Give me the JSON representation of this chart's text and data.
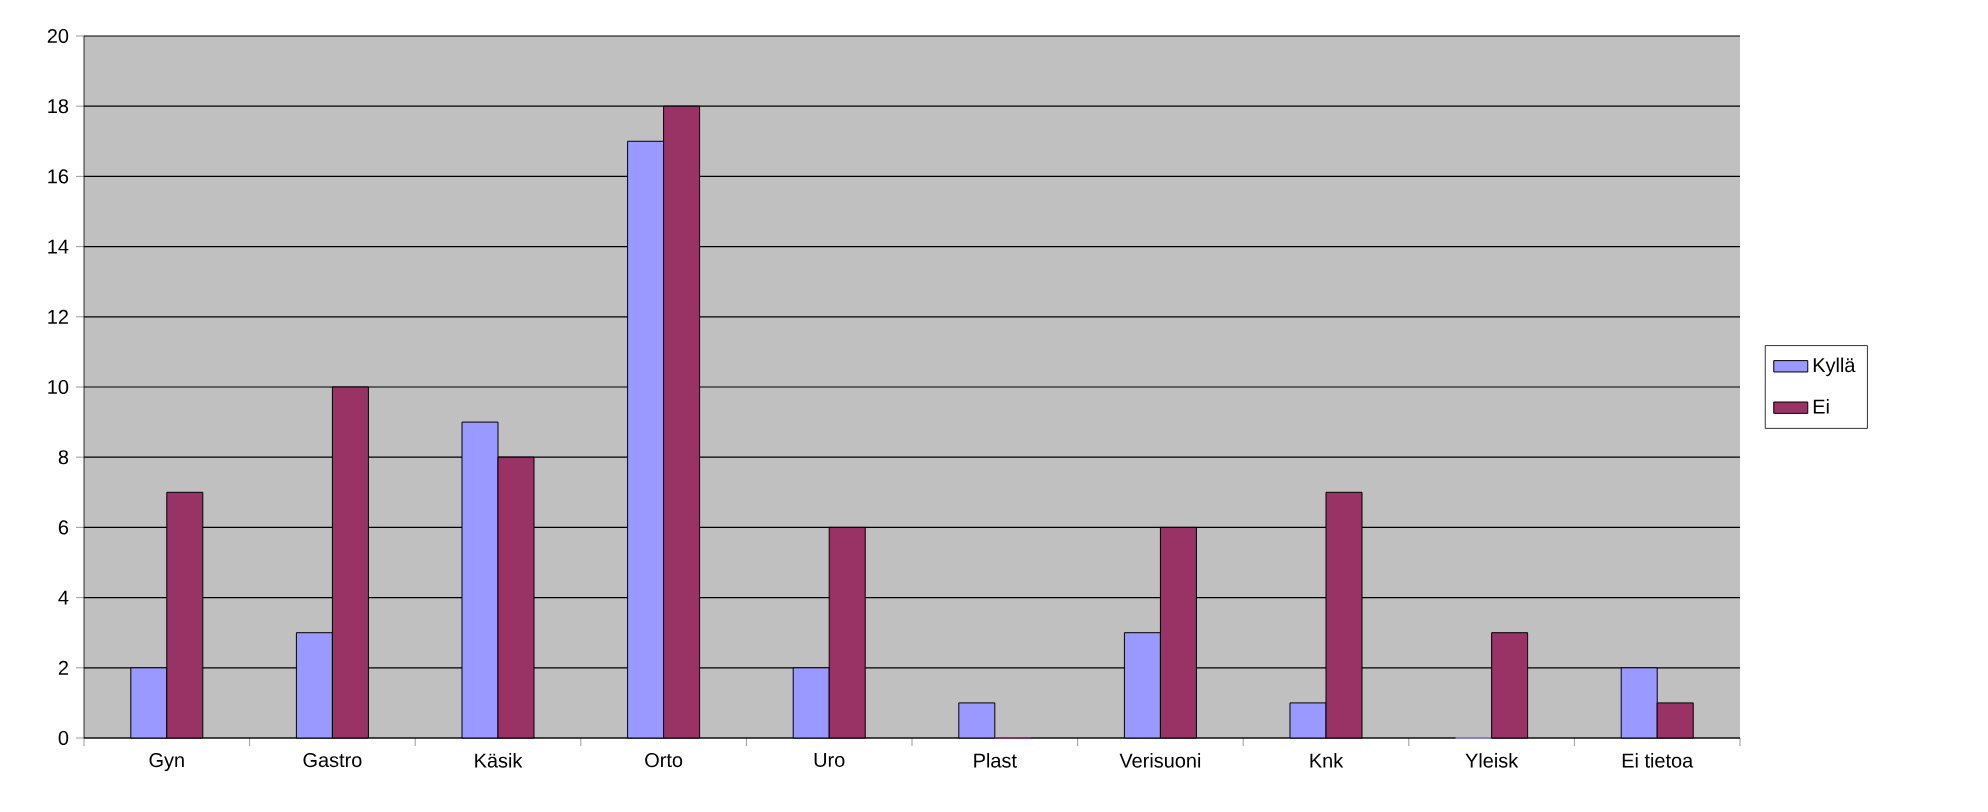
{
  "chart_data": {
    "type": "bar",
    "categories": [
      "Gyn",
      "Gastro",
      "Käsik",
      "Orto",
      "Uro",
      "Plast",
      "Verisuoni",
      "Knk",
      "Yleisk",
      "Ei tietoa"
    ],
    "series": [
      {
        "name": "Kyllä",
        "color": "#9999ff",
        "values": [
          2,
          3,
          9,
          17,
          2,
          1,
          3,
          1,
          0,
          2
        ]
      },
      {
        "name": "Ei",
        "color": "#993366",
        "values": [
          7,
          10,
          8,
          18,
          6,
          0,
          6,
          7,
          3,
          1
        ]
      }
    ],
    "ylim": [
      0,
      20
    ],
    "yticks": [
      0,
      2,
      4,
      6,
      8,
      10,
      12,
      14,
      16,
      18,
      20
    ],
    "grid": "y",
    "legend": "right"
  }
}
